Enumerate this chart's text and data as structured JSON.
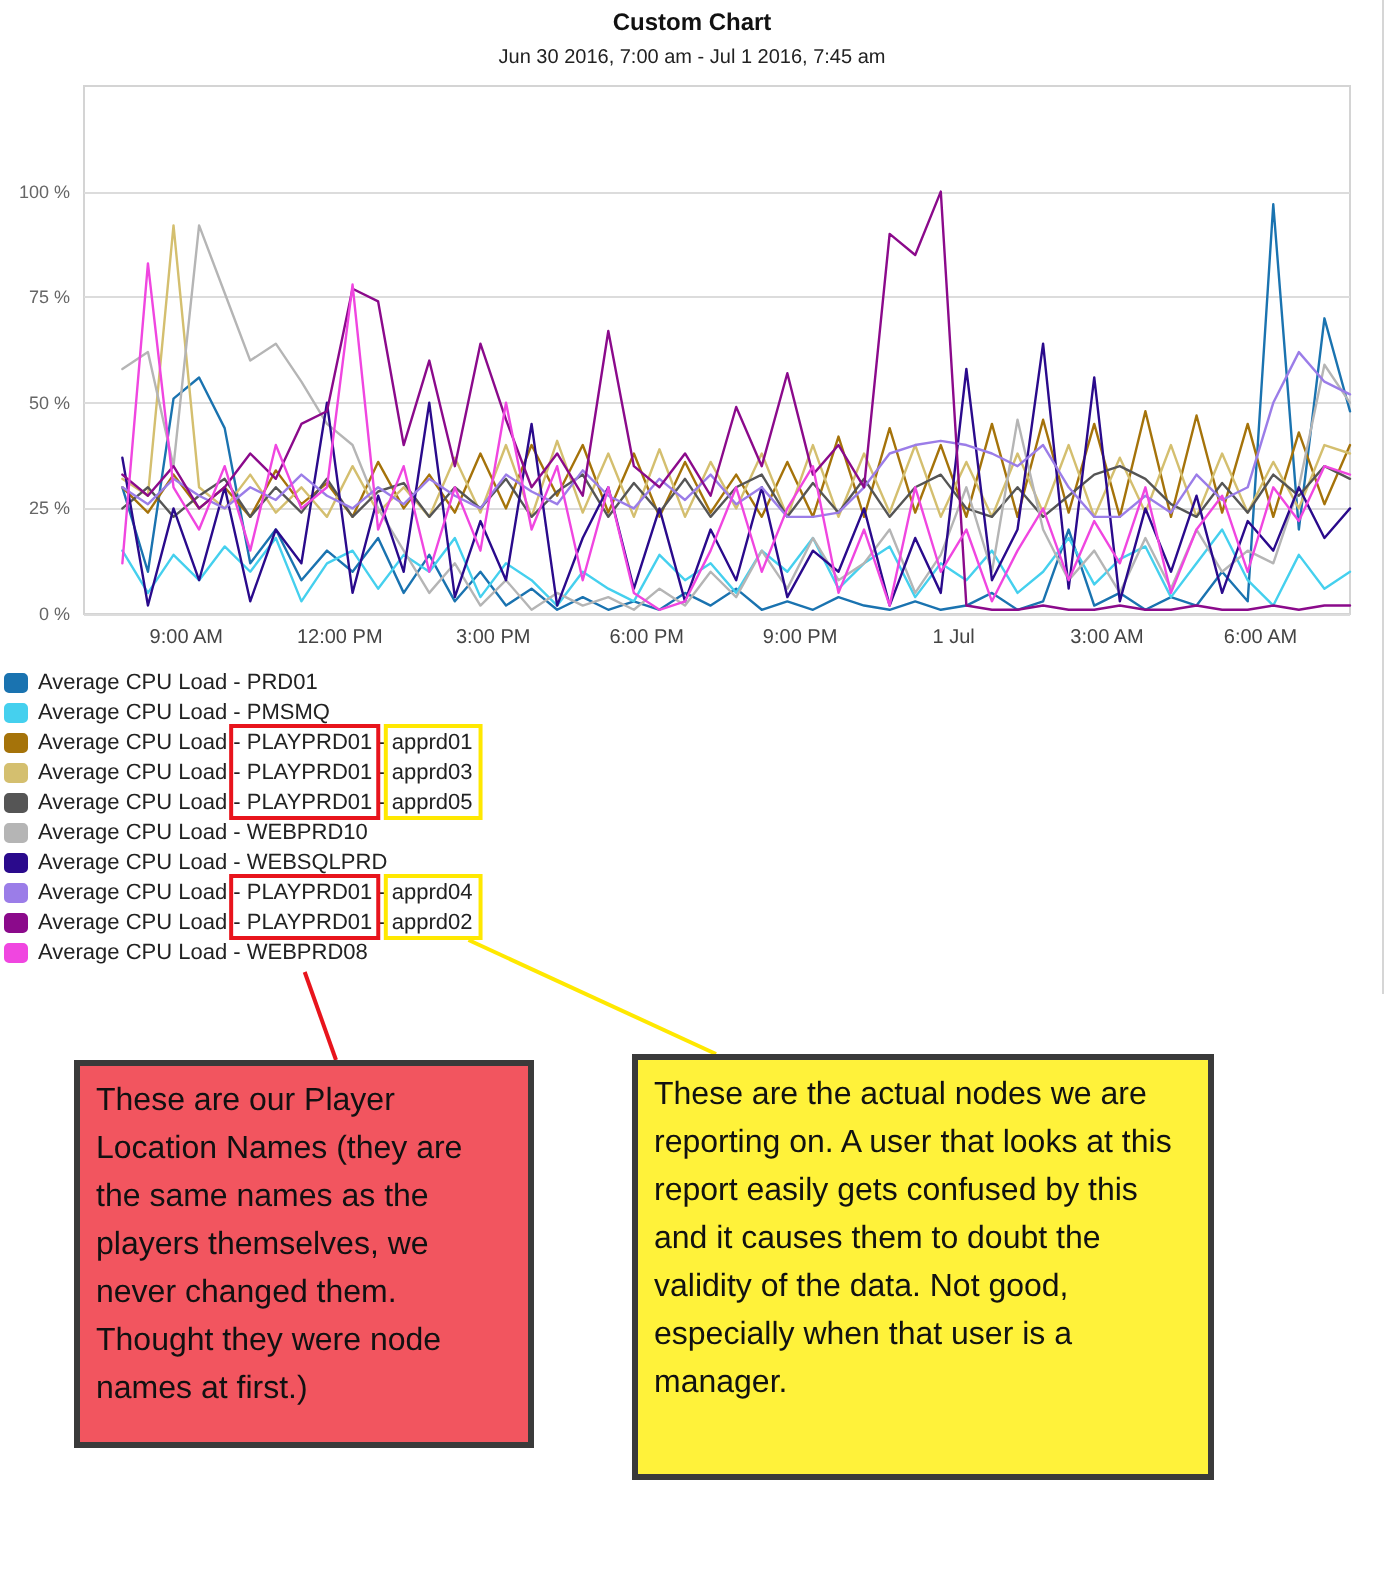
{
  "chart_data": {
    "type": "line",
    "title": "Custom Chart",
    "subtitle": "Jun 30 2016, 7:00 am - Jul 1 2016, 7:45 am",
    "x": [
      "2016-06-30T07:45",
      "2016-06-30T08:15",
      "2016-06-30T08:45",
      "2016-06-30T09:15",
      "2016-06-30T09:45",
      "2016-06-30T10:15",
      "2016-06-30T10:45",
      "2016-06-30T11:15",
      "2016-06-30T11:45",
      "2016-06-30T12:15",
      "2016-06-30T12:45",
      "2016-06-30T13:15",
      "2016-06-30T13:45",
      "2016-06-30T14:15",
      "2016-06-30T14:45",
      "2016-06-30T15:15",
      "2016-06-30T15:45",
      "2016-06-30T16:15",
      "2016-06-30T16:45",
      "2016-06-30T17:15",
      "2016-06-30T17:45",
      "2016-06-30T18:15",
      "2016-06-30T18:45",
      "2016-06-30T19:15",
      "2016-06-30T19:45",
      "2016-06-30T20:15",
      "2016-06-30T20:45",
      "2016-06-30T21:15",
      "2016-06-30T21:45",
      "2016-06-30T22:15",
      "2016-06-30T22:45",
      "2016-06-30T23:15",
      "2016-06-30T23:45",
      "2016-07-01T00:15",
      "2016-07-01T00:45",
      "2016-07-01T01:15",
      "2016-07-01T01:45",
      "2016-07-01T02:15",
      "2016-07-01T02:45",
      "2016-07-01T03:15",
      "2016-07-01T03:45",
      "2016-07-01T04:15",
      "2016-07-01T04:45",
      "2016-07-01T05:15",
      "2016-07-01T05:45",
      "2016-07-01T06:15",
      "2016-07-01T06:45",
      "2016-07-01T07:15",
      "2016-07-01T07:45"
    ],
    "series": [
      {
        "name": "Average CPU Load - PRD01",
        "color": "#1a73b0",
        "values": [
          30,
          10,
          51,
          56,
          44,
          12,
          20,
          8,
          15,
          10,
          18,
          5,
          14,
          3,
          10,
          2,
          6,
          1,
          4,
          1,
          3,
          1,
          5,
          2,
          6,
          1,
          3,
          1,
          4,
          2,
          1,
          3,
          1,
          2,
          5,
          1,
          3,
          20,
          2,
          5,
          1,
          4,
          2,
          10,
          3,
          97,
          20,
          70,
          48
        ]
      },
      {
        "name": "Average CPU Load - PMSMQ",
        "color": "#45d0ee",
        "values": [
          15,
          5,
          14,
          8,
          16,
          10,
          18,
          3,
          12,
          15,
          6,
          14,
          10,
          18,
          4,
          12,
          8,
          2,
          10,
          6,
          3,
          14,
          8,
          12,
          5,
          15,
          10,
          18,
          6,
          12,
          16,
          4,
          12,
          8,
          15,
          5,
          10,
          18,
          7,
          13,
          16,
          4,
          12,
          20,
          8,
          2,
          14,
          6,
          10
        ]
      },
      {
        "name": "Average CPU Load - PLAYPRD01 - apprd01",
        "color": "#a5730a",
        "values": [
          30,
          24,
          33,
          25,
          30,
          23,
          34,
          26,
          31,
          23,
          36,
          25,
          33,
          24,
          38,
          25,
          40,
          28,
          40,
          24,
          38,
          23,
          36,
          24,
          33,
          23,
          36,
          23,
          42,
          23,
          44,
          24,
          40,
          23,
          45,
          23,
          46,
          24,
          45,
          23,
          48,
          23,
          47,
          24,
          45,
          23,
          43,
          26,
          40
        ]
      },
      {
        "name": "Average CPU Load - PLAYPRD01 - apprd03",
        "color": "#d4bf6f",
        "values": [
          32,
          28,
          92,
          30,
          25,
          33,
          24,
          30,
          23,
          35,
          24,
          30,
          23,
          37,
          24,
          40,
          23,
          41,
          24,
          38,
          23,
          39,
          23,
          36,
          25,
          38,
          23,
          40,
          23,
          38,
          24,
          40,
          23,
          36,
          23,
          38,
          24,
          40,
          23,
          37,
          24,
          40,
          23,
          38,
          24,
          36,
          25,
          40,
          38
        ]
      },
      {
        "name": "Average CPU Load - PLAYPRD01 - apprd05",
        "color": "#555555",
        "values": [
          25,
          30,
          23,
          28,
          32,
          23,
          30,
          24,
          32,
          23,
          29,
          31,
          23,
          30,
          25,
          32,
          23,
          29,
          33,
          23,
          31,
          24,
          32,
          23,
          30,
          33,
          23,
          31,
          24,
          32,
          23,
          30,
          33,
          25,
          23,
          30,
          23,
          28,
          33,
          35,
          32,
          26,
          23,
          31,
          24,
          33,
          28,
          35,
          32
        ]
      },
      {
        "name": "Average CPU Load - WEBPRD10",
        "color": "#b5b5b5",
        "values": [
          58,
          62,
          35,
          92,
          76,
          60,
          64,
          55,
          45,
          40,
          25,
          15,
          5,
          12,
          2,
          8,
          1,
          5,
          2,
          4,
          1,
          6,
          2,
          10,
          4,
          15,
          6,
          18,
          8,
          12,
          20,
          5,
          14,
          30,
          10,
          46,
          20,
          8,
          15,
          5,
          18,
          6,
          20,
          10,
          15,
          12,
          30,
          59,
          50
        ]
      },
      {
        "name": "Average CPU Load - WEBSQLPRD",
        "color": "#2a0a8c",
        "values": [
          37,
          2,
          25,
          8,
          30,
          3,
          20,
          12,
          50,
          5,
          28,
          10,
          50,
          4,
          22,
          8,
          45,
          2,
          18,
          30,
          6,
          25,
          3,
          20,
          8,
          30,
          4,
          15,
          10,
          25,
          2,
          18,
          5,
          58,
          8,
          20,
          64,
          6,
          56,
          3,
          25,
          10,
          28,
          5,
          22,
          15,
          30,
          18,
          25
        ]
      },
      {
        "name": "Average CPU Load - PLAYPRD01 - apprd04",
        "color": "#9b7de8",
        "values": [
          30,
          26,
          32,
          28,
          25,
          30,
          27,
          33,
          28,
          25,
          30,
          26,
          32,
          28,
          25,
          33,
          29,
          26,
          34,
          28,
          25,
          32,
          27,
          33,
          26,
          30,
          23,
          23,
          24,
          30,
          38,
          40,
          41,
          40,
          38,
          35,
          40,
          30,
          23,
          23,
          28,
          24,
          33,
          27,
          30,
          50,
          62,
          55,
          52
        ]
      },
      {
        "name": "Average CPU Load - PLAYPRD01 - apprd02",
        "color": "#8b0a8b",
        "values": [
          33,
          28,
          35,
          25,
          30,
          38,
          32,
          45,
          48,
          77,
          74,
          40,
          60,
          35,
          64,
          46,
          30,
          38,
          28,
          67,
          35,
          30,
          38,
          28,
          49,
          35,
          57,
          33,
          40,
          30,
          90,
          85,
          100,
          2,
          1,
          1,
          2,
          1,
          1,
          2,
          1,
          1,
          2,
          1,
          1,
          2,
          1,
          2,
          2
        ]
      },
      {
        "name": "Average CPU Load - WEBPRD08",
        "color": "#f046e0",
        "values": [
          12,
          83,
          30,
          20,
          35,
          15,
          40,
          25,
          30,
          78,
          20,
          35,
          10,
          30,
          15,
          50,
          20,
          35,
          8,
          30,
          5,
          1,
          3,
          15,
          30,
          10,
          25,
          35,
          5,
          20,
          2,
          30,
          10,
          20,
          3,
          15,
          25,
          8,
          22,
          12,
          30,
          5,
          20,
          28,
          10,
          30,
          22,
          35,
          33
        ]
      }
    ],
    "xlim": [
      "2016-06-30T07:00",
      "2016-07-01T07:45"
    ],
    "xticks": [
      {
        "value": "2016-06-30T09:00",
        "label": "9:00 AM"
      },
      {
        "value": "2016-06-30T12:00",
        "label": "12:00 PM"
      },
      {
        "value": "2016-06-30T15:00",
        "label": "3:00 PM"
      },
      {
        "value": "2016-06-30T18:00",
        "label": "6:00 PM"
      },
      {
        "value": "2016-06-30T21:00",
        "label": "9:00 PM"
      },
      {
        "value": "2016-07-01T00:00",
        "label": "1 Jul"
      },
      {
        "value": "2016-07-01T03:00",
        "label": "3:00 AM"
      },
      {
        "value": "2016-07-01T06:00",
        "label": "6:00 AM"
      }
    ],
    "ylim": [
      0,
      125
    ],
    "yticks": [
      {
        "value": 0,
        "label": "0 %"
      },
      {
        "value": 25,
        "label": "25 %"
      },
      {
        "value": 50,
        "label": "50 %"
      },
      {
        "value": 75,
        "label": "75 %"
      },
      {
        "value": 100,
        "label": "100 %"
      }
    ],
    "grid": "y",
    "legend": "bottom left",
    "marker": "none",
    "line_style": "solid",
    "annotations": [
      "These are our Player Location Names (they are the same names as the players themselves, we never changed them.  Thought they were node names at first.)",
      "These are the actual nodes we are reporting on.  A user that looks at this report easily gets confused by this and it causes them to doubt the validity of the data.  Not good, especially when that user is a manager."
    ]
  }
}
